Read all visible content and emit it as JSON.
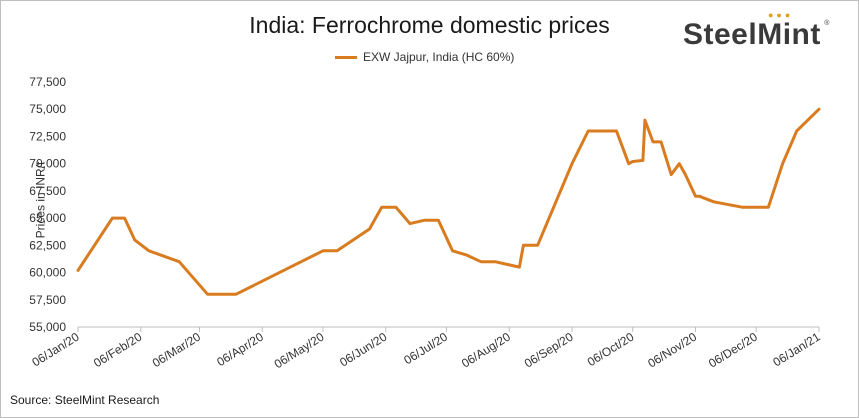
{
  "chart_data": {
    "type": "line",
    "title": "India: Ferrochrome domestic prices",
    "ylabel": "Prices in INR/t",
    "xlabel": "",
    "ylim": [
      55000,
      77500
    ],
    "yticks": [
      "55,000",
      "57,500",
      "60,000",
      "62,500",
      "65,000",
      "67,500",
      "70,000",
      "72,500",
      "75,000",
      "77,500"
    ],
    "ytick_values": [
      55000,
      57500,
      60000,
      62500,
      65000,
      67500,
      70000,
      72500,
      75000,
      77500
    ],
    "xticks": [
      "06/Jan/20",
      "06/Feb/20",
      "06/Mar/20",
      "06/Apr/20",
      "06/May/20",
      "06/Jun/20",
      "06/Jul/20",
      "06/Aug/20",
      "06/Sep/20",
      "06/Oct/20",
      "06/Nov/20",
      "06/Dec/20",
      "06/Jan/21"
    ],
    "xtick_dates": [
      "2020-01-06",
      "2020-02-06",
      "2020-03-06",
      "2020-04-06",
      "2020-05-06",
      "2020-06-06",
      "2020-07-06",
      "2020-08-06",
      "2020-09-06",
      "2020-10-06",
      "2020-11-06",
      "2020-12-06",
      "2021-01-06"
    ],
    "legend_position": "top-center",
    "grid": false,
    "series": [
      {
        "name": "EXW Jajpur, India (HC 60%)",
        "color": "#d97b1f",
        "points": [
          {
            "x": "2020-01-06",
            "y": 60200
          },
          {
            "x": "2020-01-23",
            "y": 65000
          },
          {
            "x": "2020-01-29",
            "y": 65000
          },
          {
            "x": "2020-02-03",
            "y": 63000
          },
          {
            "x": "2020-02-10",
            "y": 62000
          },
          {
            "x": "2020-02-25",
            "y": 61000
          },
          {
            "x": "2020-03-10",
            "y": 58000
          },
          {
            "x": "2020-03-24",
            "y": 58000
          },
          {
            "x": "2020-05-06",
            "y": 62000
          },
          {
            "x": "2020-05-13",
            "y": 62000
          },
          {
            "x": "2020-05-29",
            "y": 64000
          },
          {
            "x": "2020-06-04",
            "y": 66000
          },
          {
            "x": "2020-06-11",
            "y": 66000
          },
          {
            "x": "2020-06-18",
            "y": 64500
          },
          {
            "x": "2020-06-25",
            "y": 64800
          },
          {
            "x": "2020-07-02",
            "y": 64800
          },
          {
            "x": "2020-07-09",
            "y": 62000
          },
          {
            "x": "2020-07-16",
            "y": 61600
          },
          {
            "x": "2020-07-23",
            "y": 61000
          },
          {
            "x": "2020-07-30",
            "y": 61000
          },
          {
            "x": "2020-08-11",
            "y": 60500
          },
          {
            "x": "2020-08-13",
            "y": 62500
          },
          {
            "x": "2020-08-20",
            "y": 62500
          },
          {
            "x": "2020-09-06",
            "y": 70000
          },
          {
            "x": "2020-09-14",
            "y": 73000
          },
          {
            "x": "2020-09-28",
            "y": 73000
          },
          {
            "x": "2020-10-04",
            "y": 70000
          },
          {
            "x": "2020-10-06",
            "y": 70200
          },
          {
            "x": "2020-10-11",
            "y": 70300
          },
          {
            "x": "2020-10-12",
            "y": 74000
          },
          {
            "x": "2020-10-16",
            "y": 72000
          },
          {
            "x": "2020-10-20",
            "y": 72000
          },
          {
            "x": "2020-10-25",
            "y": 69000
          },
          {
            "x": "2020-10-29",
            "y": 70000
          },
          {
            "x": "2020-11-01",
            "y": 69000
          },
          {
            "x": "2020-11-06",
            "y": 67000
          },
          {
            "x": "2020-11-08",
            "y": 67000
          },
          {
            "x": "2020-11-15",
            "y": 66500
          },
          {
            "x": "2020-11-29",
            "y": 66000
          },
          {
            "x": "2020-12-12",
            "y": 66000
          },
          {
            "x": "2020-12-19",
            "y": 70000
          },
          {
            "x": "2020-12-26",
            "y": 73000
          },
          {
            "x": "2021-01-06",
            "y": 75000
          }
        ]
      }
    ]
  },
  "logo": {
    "text": "SteelMint",
    "reg": "®"
  },
  "source": "Source: SteelMint Research"
}
